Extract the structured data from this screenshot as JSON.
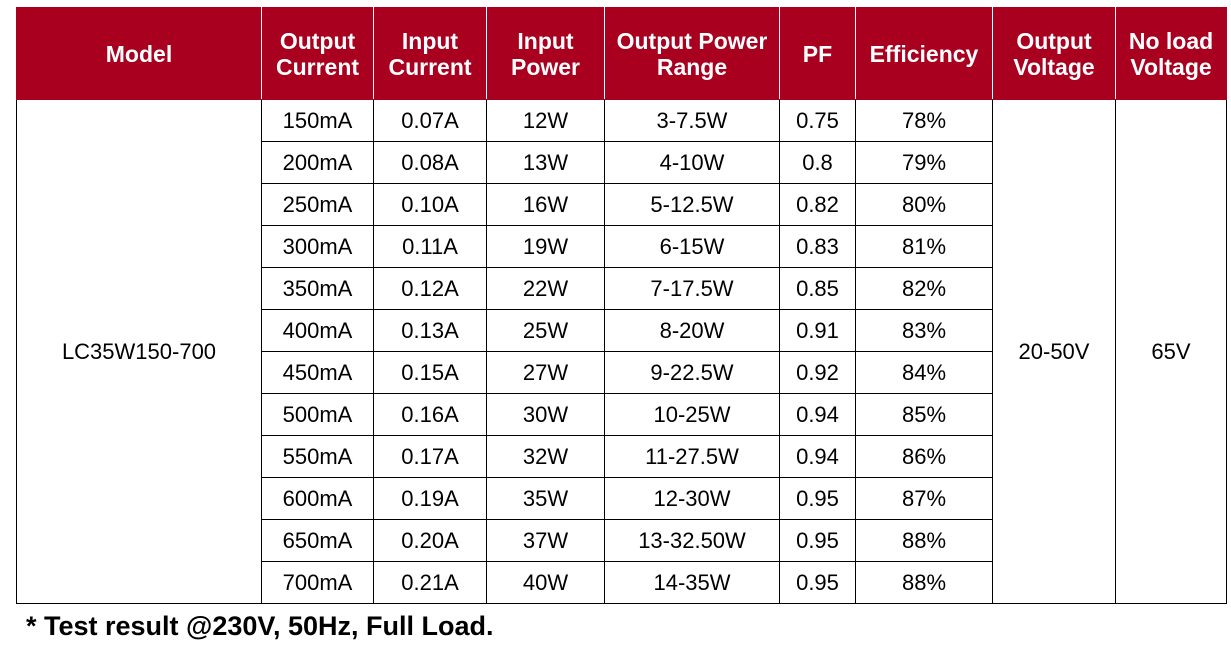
{
  "colors": {
    "header_background": "#a8001e",
    "header_text": "#ffffff",
    "grid_line": "#000000"
  },
  "table": {
    "headers": [
      {
        "line1": "Model",
        "line2": ""
      },
      {
        "line1": "Output",
        "line2": "Current"
      },
      {
        "line1": "Input",
        "line2": "Current"
      },
      {
        "line1": "Input",
        "line2": "Power"
      },
      {
        "line1": "Output Power",
        "line2": "Range"
      },
      {
        "line1": "PF",
        "line2": ""
      },
      {
        "line1": "Efficiency",
        "line2": ""
      },
      {
        "line1": "Output",
        "line2": "Voltage"
      },
      {
        "line1": "No load",
        "line2": "Voltage"
      }
    ],
    "model": "LC35W150-700",
    "output_voltage": "20-50V",
    "no_load_voltage": "65V",
    "rows": [
      {
        "output_current": "150mA",
        "input_current": "0.07A",
        "input_power": "12W",
        "output_power_range": "3-7.5W",
        "pf": "0.75",
        "efficiency": "78%"
      },
      {
        "output_current": "200mA",
        "input_current": "0.08A",
        "input_power": "13W",
        "output_power_range": "4-10W",
        "pf": "0.8",
        "efficiency": "79%"
      },
      {
        "output_current": "250mA",
        "input_current": "0.10A",
        "input_power": "16W",
        "output_power_range": "5-12.5W",
        "pf": "0.82",
        "efficiency": "80%"
      },
      {
        "output_current": "300mA",
        "input_current": "0.11A",
        "input_power": "19W",
        "output_power_range": "6-15W",
        "pf": "0.83",
        "efficiency": "81%"
      },
      {
        "output_current": "350mA",
        "input_current": "0.12A",
        "input_power": "22W",
        "output_power_range": "7-17.5W",
        "pf": "0.85",
        "efficiency": "82%"
      },
      {
        "output_current": "400mA",
        "input_current": "0.13A",
        "input_power": "25W",
        "output_power_range": "8-20W",
        "pf": "0.91",
        "efficiency": "83%"
      },
      {
        "output_current": "450mA",
        "input_current": "0.15A",
        "input_power": "27W",
        "output_power_range": "9-22.5W",
        "pf": "0.92",
        "efficiency": "84%"
      },
      {
        "output_current": "500mA",
        "input_current": "0.16A",
        "input_power": "30W",
        "output_power_range": "10-25W",
        "pf": "0.94",
        "efficiency": "85%"
      },
      {
        "output_current": "550mA",
        "input_current": "0.17A",
        "input_power": "32W",
        "output_power_range": "11-27.5W",
        "pf": "0.94",
        "efficiency": "86%"
      },
      {
        "output_current": "600mA",
        "input_current": "0.19A",
        "input_power": "35W",
        "output_power_range": "12-30W",
        "pf": "0.95",
        "efficiency": "87%"
      },
      {
        "output_current": "650mA",
        "input_current": "0.20A",
        "input_power": "37W",
        "output_power_range": "13-32.50W",
        "pf": "0.95",
        "efficiency": "88%"
      },
      {
        "output_current": "700mA",
        "input_current": "0.21A",
        "input_power": "40W",
        "output_power_range": "14-35W",
        "pf": "0.95",
        "efficiency": "88%"
      }
    ]
  },
  "footnote": "* Test result @230V, 50Hz, Full Load."
}
